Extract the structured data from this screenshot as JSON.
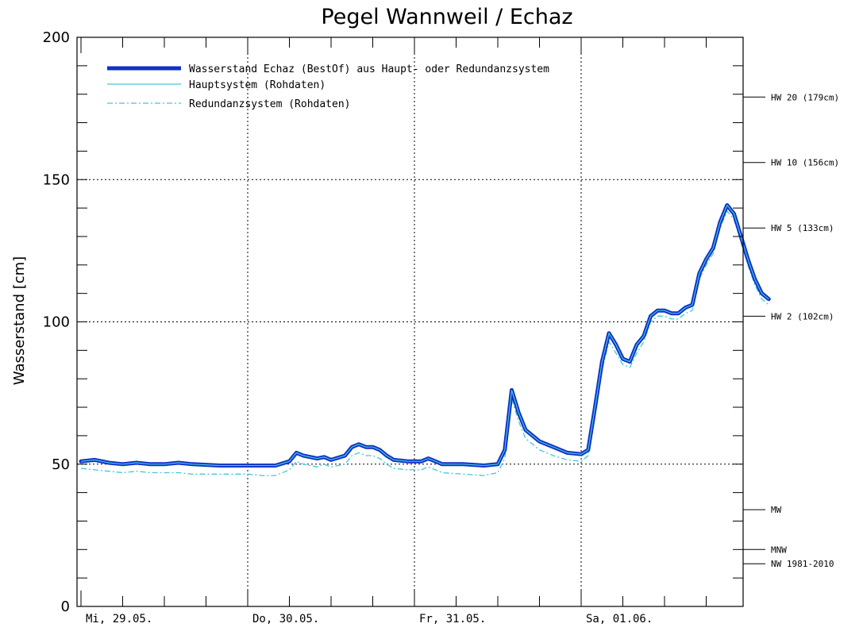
{
  "chart_data": {
    "type": "line",
    "title": "Pegel Wannweil / Echaz",
    "ylabel": "Wasserstand [cm]",
    "xlabel": "",
    "ylim": [
      0,
      200
    ],
    "yticks": [
      "0",
      "50",
      "100",
      "150",
      "200"
    ],
    "x_day_labels": [
      "Mi, 29.05.",
      "Do, 30.05.",
      "Fr, 31.05.",
      "Sa, 01.06."
    ],
    "x_range_hours": [
      0,
      96
    ],
    "x_unit": "hours since Mi, 29.05. 00:00",
    "grid": "dotted at y=50,100,150 and day boundaries",
    "legend": {
      "placement": "top-left",
      "entries": [
        "Wasserstand Echaz  (BestOf)  aus Haupt- oder Redundanzsystem",
        "Hauptsystem (Rohdaten)",
        "Redundanzsystem (Rohdaten)"
      ]
    },
    "thresholds": [
      {
        "label": "HW 20 (179cm)",
        "value": 179
      },
      {
        "label": "HW 10 (156cm)",
        "value": 156
      },
      {
        "label": "HW 5 (133cm)",
        "value": 133
      },
      {
        "label": "HW 2 (102cm)",
        "value": 102
      },
      {
        "label": "MW",
        "value": 34
      },
      {
        "label": "MNW",
        "value": 20
      },
      {
        "label": "NW 1981-2010",
        "value": 15
      }
    ],
    "series": [
      {
        "name": "Wasserstand Echaz  (BestOf)  aus Haupt- oder Redundanzsystem",
        "color": "#1030c8",
        "points": [
          [
            0,
            51
          ],
          [
            2,
            51.5
          ],
          [
            4,
            50.5
          ],
          [
            6,
            50
          ],
          [
            8,
            50.5
          ],
          [
            10,
            50
          ],
          [
            12,
            50
          ],
          [
            14,
            50.5
          ],
          [
            16,
            50
          ],
          [
            20,
            49.5
          ],
          [
            24,
            49.5
          ],
          [
            26,
            49.5
          ],
          [
            28,
            49.5
          ],
          [
            30,
            51
          ],
          [
            31,
            54
          ],
          [
            32,
            53
          ],
          [
            34,
            52
          ],
          [
            35,
            52.5
          ],
          [
            36,
            51.5
          ],
          [
            38,
            53
          ],
          [
            39,
            56
          ],
          [
            40,
            57
          ],
          [
            41,
            56
          ],
          [
            42,
            56
          ],
          [
            43,
            55
          ],
          [
            44,
            53
          ],
          [
            45,
            51.5
          ],
          [
            47,
            51
          ],
          [
            49,
            51
          ],
          [
            50,
            52
          ],
          [
            51,
            51
          ],
          [
            52,
            50
          ],
          [
            55,
            50
          ],
          [
            58,
            49.5
          ],
          [
            60,
            50
          ],
          [
            61,
            55
          ],
          [
            62,
            76
          ],
          [
            63,
            68
          ],
          [
            64,
            62
          ],
          [
            66,
            58
          ],
          [
            68,
            56
          ],
          [
            70,
            54
          ],
          [
            72,
            53.5
          ],
          [
            73,
            55
          ],
          [
            74,
            70
          ],
          [
            75,
            86
          ],
          [
            76,
            96
          ],
          [
            77,
            92
          ],
          [
            78,
            87
          ],
          [
            79,
            86
          ],
          [
            80,
            92
          ],
          [
            81,
            95
          ],
          [
            82,
            102
          ],
          [
            83,
            104
          ],
          [
            84,
            104
          ],
          [
            85,
            103
          ],
          [
            86,
            103
          ],
          [
            87,
            105
          ],
          [
            88,
            106
          ],
          [
            89,
            117
          ],
          [
            90,
            122
          ],
          [
            91,
            126
          ],
          [
            92,
            135
          ],
          [
            93,
            141
          ],
          [
            94,
            138
          ],
          [
            95,
            130
          ],
          [
            96,
            122
          ],
          [
            97,
            115
          ],
          [
            98,
            110
          ],
          [
            99,
            108
          ]
        ]
      },
      {
        "name": "Hauptsystem (Rohdaten)",
        "color": "#40c8d8",
        "points": [
          [
            0,
            51
          ],
          [
            2,
            51.5
          ],
          [
            4,
            50.5
          ],
          [
            6,
            50
          ],
          [
            8,
            50.5
          ],
          [
            10,
            50
          ],
          [
            12,
            50
          ],
          [
            14,
            50.5
          ],
          [
            16,
            50
          ],
          [
            20,
            49.5
          ],
          [
            24,
            49.5
          ],
          [
            26,
            49.5
          ],
          [
            28,
            49.5
          ],
          [
            30,
            51
          ],
          [
            31,
            54
          ],
          [
            32,
            53
          ],
          [
            34,
            52
          ],
          [
            35,
            52.5
          ],
          [
            36,
            51.5
          ],
          [
            38,
            53
          ],
          [
            39,
            56
          ],
          [
            40,
            57
          ],
          [
            41,
            56
          ],
          [
            42,
            56
          ],
          [
            43,
            55
          ],
          [
            44,
            53
          ],
          [
            45,
            51.5
          ],
          [
            47,
            51
          ],
          [
            49,
            51
          ],
          [
            50,
            52
          ],
          [
            51,
            51
          ],
          [
            52,
            50
          ],
          [
            55,
            50
          ],
          [
            58,
            49.5
          ],
          [
            60,
            50
          ],
          [
            61,
            55
          ],
          [
            62,
            76
          ],
          [
            63,
            68
          ],
          [
            64,
            62
          ],
          [
            66,
            58
          ],
          [
            68,
            56
          ],
          [
            70,
            54
          ],
          [
            72,
            53.5
          ],
          [
            73,
            55
          ],
          [
            74,
            70
          ],
          [
            75,
            86
          ],
          [
            76,
            96
          ],
          [
            77,
            92
          ],
          [
            78,
            87
          ],
          [
            79,
            86
          ],
          [
            80,
            92
          ],
          [
            81,
            95
          ],
          [
            82,
            102
          ],
          [
            83,
            104
          ],
          [
            84,
            104
          ],
          [
            85,
            103
          ],
          [
            86,
            103
          ],
          [
            87,
            105
          ],
          [
            88,
            106
          ],
          [
            89,
            117
          ],
          [
            90,
            122
          ],
          [
            91,
            126
          ],
          [
            92,
            135
          ],
          [
            93,
            141
          ],
          [
            94,
            138
          ],
          [
            95,
            130
          ],
          [
            96,
            122
          ],
          [
            97,
            115
          ],
          [
            98,
            110
          ],
          [
            99,
            108
          ]
        ]
      },
      {
        "name": "Redundanzsystem (Rohdaten)",
        "color": "#40c8d8",
        "points": [
          [
            0,
            48.5
          ],
          [
            2,
            48
          ],
          [
            4,
            47.5
          ],
          [
            6,
            47
          ],
          [
            8,
            47.5
          ],
          [
            10,
            47
          ],
          [
            12,
            47
          ],
          [
            14,
            47
          ],
          [
            16,
            46.5
          ],
          [
            20,
            46.5
          ],
          [
            24,
            46.5
          ],
          [
            26,
            46
          ],
          [
            28,
            46
          ],
          [
            30,
            48
          ],
          [
            31,
            51
          ],
          [
            32,
            50
          ],
          [
            34,
            49
          ],
          [
            35,
            50
          ],
          [
            36,
            49
          ],
          [
            38,
            50
          ],
          [
            39,
            53
          ],
          [
            40,
            54
          ],
          [
            41,
            53
          ],
          [
            42,
            53
          ],
          [
            43,
            52
          ],
          [
            44,
            50
          ],
          [
            45,
            48.5
          ],
          [
            47,
            48
          ],
          [
            49,
            48
          ],
          [
            50,
            49
          ],
          [
            51,
            48
          ],
          [
            52,
            47
          ],
          [
            55,
            46.5
          ],
          [
            58,
            46
          ],
          [
            60,
            47
          ],
          [
            61,
            52
          ],
          [
            62,
            73
          ],
          [
            63,
            65
          ],
          [
            64,
            59
          ],
          [
            66,
            55
          ],
          [
            68,
            53
          ],
          [
            70,
            51.5
          ],
          [
            72,
            51
          ],
          [
            73,
            53
          ],
          [
            74,
            67
          ],
          [
            75,
            83
          ],
          [
            76,
            93
          ],
          [
            77,
            89
          ],
          [
            78,
            85
          ],
          [
            79,
            84
          ],
          [
            80,
            89
          ],
          [
            81,
            93
          ],
          [
            82,
            100
          ],
          [
            83,
            102
          ],
          [
            84,
            102
          ],
          [
            85,
            101
          ],
          [
            86,
            101
          ],
          [
            87,
            103
          ],
          [
            88,
            104
          ],
          [
            89,
            115
          ],
          [
            90,
            120
          ],
          [
            91,
            124
          ],
          [
            92,
            133
          ],
          [
            93,
            139
          ],
          [
            94,
            136
          ],
          [
            95,
            128
          ],
          [
            96,
            120
          ],
          [
            97,
            113
          ],
          [
            98,
            108
          ],
          [
            99,
            106
          ]
        ]
      }
    ]
  }
}
